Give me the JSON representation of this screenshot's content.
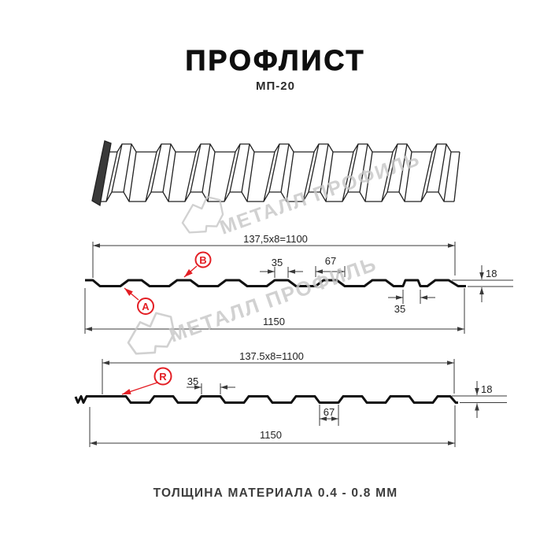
{
  "header": {
    "title": "ПРОФЛИСТ",
    "subtitle": "МП-20"
  },
  "footer": {
    "caption": "ТОЛЩИНА МАТЕРИАЛА 0.4 - 0.8 ММ"
  },
  "watermark": {
    "text": "МЕТАЛЛ ПРОФИЛЬ",
    "logo_icon": "metall-profil-logo",
    "color": "#c6c6c6"
  },
  "profile_top": {
    "module_dim": "137,5x8=1100",
    "total_width_dim": "1150",
    "crest_width_dim": "35",
    "rib_base_dim": "67",
    "height_dim": "18",
    "groove_base_dim": "35",
    "label_a": "A",
    "label_b": "B"
  },
  "profile_bottom": {
    "module_dim": "137.5x8=1100",
    "total_width_dim": "1150",
    "crest_width_dim": "35",
    "valley_base_dim": "67",
    "height_dim": "18",
    "label_r": "R"
  },
  "colors": {
    "accent_red": "#e31e24",
    "drawing_black": "#111111",
    "dim_line": "#3a3a3a",
    "watermark_gray": "#c6c6c6"
  }
}
